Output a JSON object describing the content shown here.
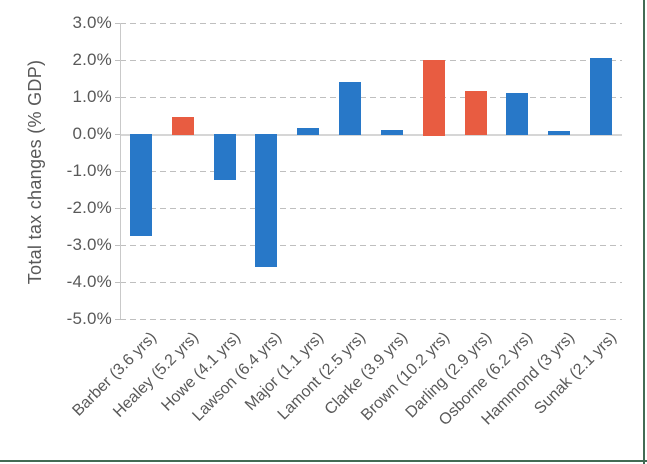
{
  "window": {
    "background": "#FFFFFF",
    "frame_border_color": "#426B54"
  },
  "chart_data": {
    "type": "bar",
    "title": "",
    "ylabel": "Total tax changes (% GDP)",
    "xlabel": "",
    "ylim": [
      -5.0,
      3.0
    ],
    "ytick_step": 1.0,
    "ytick_labels": [
      "3.0%",
      "2.0%",
      "1.0%",
      "0.0%",
      "-1.0%",
      "-2.0%",
      "-3.0%",
      "-4.0%",
      "-5.0%"
    ],
    "grid": "horizontal-dashed",
    "legend_position": "none",
    "categories": [
      "Barber (3.6 yrs)",
      "Healey (5.2 yrs)",
      "Howe (4.1 yrs)",
      "Lawson (6.4 yrs)",
      "Major (1.1 yrs)",
      "Lamont (2.5 yrs)",
      "Clarke (3.9 yrs)",
      "Brown (10.2 yrs)",
      "Darling (2.9 yrs)",
      "Osborne (6.2 yrs)",
      "Hammond (3 yrs)",
      "Sunak (2.1 yrs)"
    ],
    "values": [
      -2.75,
      0.45,
      -1.25,
      -3.6,
      0.15,
      1.4,
      0.1,
      2.0,
      1.15,
      1.1,
      0.08,
      2.05
    ],
    "unit": "% GDP",
    "bar_color_default": "#2878C8",
    "bar_color_highlight": "#E85C41",
    "highlight_indices": [
      1,
      7,
      8
    ],
    "gridline_color": "#BFBFBF",
    "axis_line_color": "#D6D6D6",
    "text_color": "#595959"
  }
}
